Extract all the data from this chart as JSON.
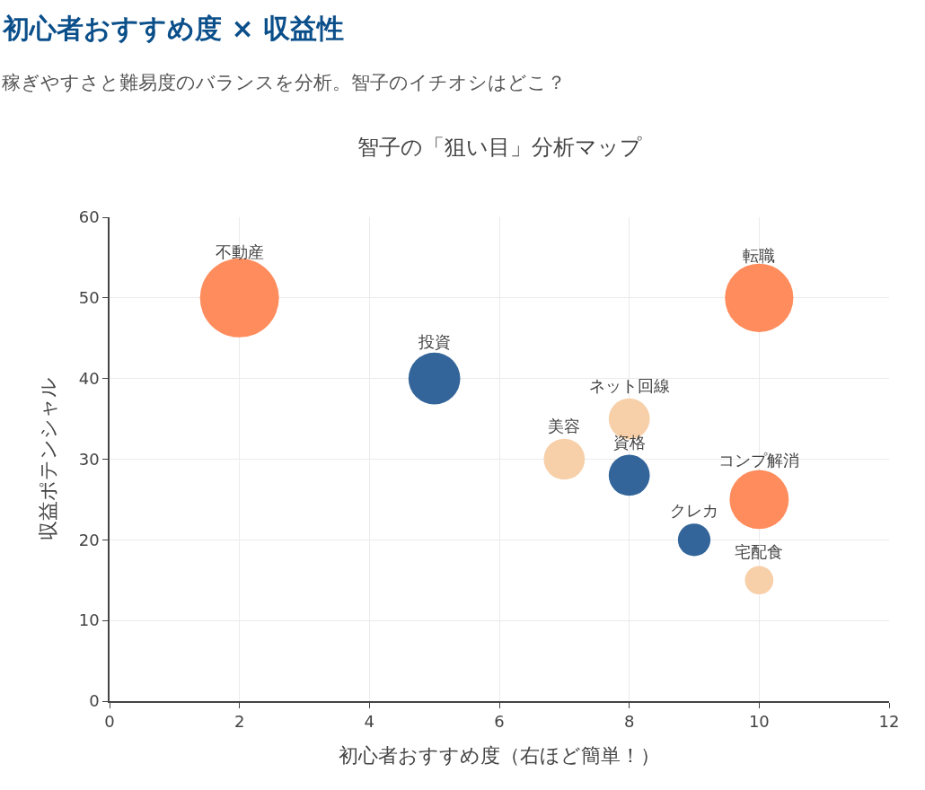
{
  "chart_data": {
    "type": "bubble",
    "title": "初心者おすすめ度 × 収益性",
    "subtitle": "稼ぎやすさと難易度のバランスを分析。智子のイチオシはどこ？",
    "xlabel": "初心者おすすめ度（右ほど簡単！）",
    "ylabel": "収益ポテンシャル",
    "x": [
      2,
      10,
      5,
      8,
      7,
      8,
      10,
      9,
      10
    ],
    "values": [
      50,
      50,
      40,
      35,
      30,
      28,
      25,
      20,
      15
    ],
    "sizes": [
      1,
      0.75,
      0.43,
      0.27,
      0.27,
      0.27,
      0.56,
      0.17,
      0.13
    ],
    "colors": [
      "#ff8c5c",
      "#ff8c5c",
      "#33659a",
      "#f7cfa8",
      "#f7cfa8",
      "#33659a",
      "#ff8c5c",
      "#33659a",
      "#f7cfa8"
    ],
    "annotations": [
      "智子の「狙い目」分析マップ",
      {
        "text": "不動産",
        "x": 2,
        "y": 50
      },
      {
        "text": "転職",
        "x": 10,
        "y": 50
      },
      {
        "text": "投資",
        "x": 5,
        "y": 40
      },
      {
        "text": "ネット回線",
        "x": 8,
        "y": 35
      },
      {
        "text": "美容",
        "x": 7,
        "y": 30
      },
      {
        "text": "資格",
        "x": 8,
        "y": 28
      },
      {
        "text": "コンプ解消",
        "x": 10,
        "y": 25
      },
      {
        "text": "クレカ",
        "x": 9,
        "y": 20
      },
      {
        "text": "宅配食",
        "x": 10,
        "y": 15
      }
    ],
    "xlim": [
      0,
      12
    ],
    "xticks": [
      0,
      2,
      4,
      6,
      8,
      10,
      12
    ],
    "ylim": [
      0,
      60
    ],
    "yticks": [
      0,
      10,
      20,
      30,
      40,
      50,
      60
    ],
    "grid": true,
    "marker": "circle"
  }
}
